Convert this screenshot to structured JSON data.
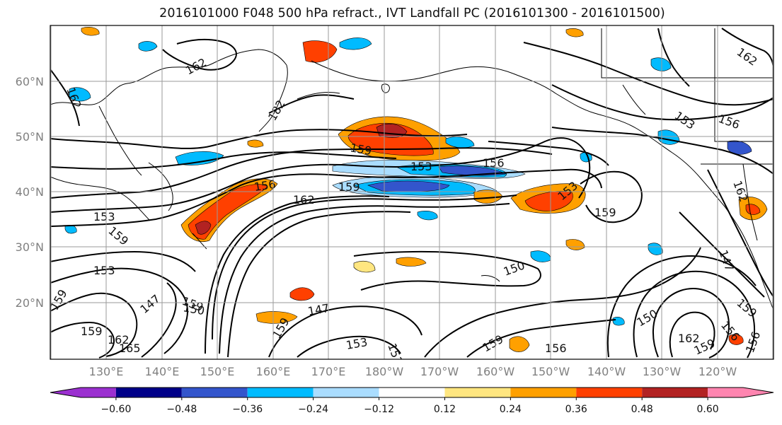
{
  "title": "2016101000 F048 500 hPa refract., IVT Landfall PC (2016101300 - 2016101500)",
  "lat_labels": [
    "60°N",
    "50°N",
    "40°N",
    "30°N",
    "20°N"
  ],
  "lon_labels": [
    "130°E",
    "140°E",
    "150°E",
    "160°E",
    "170°E",
    "180°W",
    "170°W",
    "160°W",
    "150°W",
    "140°W",
    "130°W",
    "120°W"
  ],
  "colorbar": {
    "colors": [
      "#9b30d0",
      "#000088",
      "#3355cc",
      "#00bbff",
      "#aaddff",
      "#ffffff",
      "#ffe680",
      "#ffa000",
      "#ff4000",
      "#b22222",
      "#ff85b0"
    ],
    "tick_labels": [
      "−0.60",
      "−0.48",
      "−0.36",
      "−0.24",
      "−0.12",
      "0.12",
      "0.24",
      "0.36",
      "0.48",
      "0.60"
    ]
  },
  "contour_labels": [
    "162",
    "162",
    "182",
    "159",
    "153",
    "156",
    "156",
    "153",
    "156",
    "162",
    "159",
    "153",
    "153",
    "159",
    "162",
    "153",
    "147",
    "159",
    "159",
    "159",
    "162",
    "165",
    "150",
    "147",
    "150",
    "153",
    "153",
    "159",
    "156",
    "150",
    "162",
    "156",
    "159",
    "159",
    "147",
    "156",
    "159",
    "162",
    "159"
  ]
}
